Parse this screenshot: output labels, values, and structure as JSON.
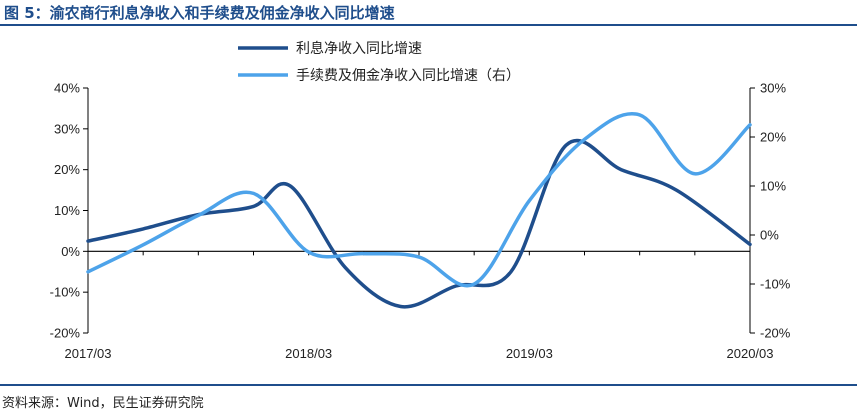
{
  "figure": {
    "title": "图 5：渝农商行利息净收入和手续费及佣金净收入同比增速",
    "source": "资料来源：Wind，民生证券研究院"
  },
  "colors": {
    "series1": "#1f4e8c",
    "series2": "#4da3ea",
    "rule": "#1f4e8c",
    "axis": "#000000"
  },
  "chart_data": {
    "type": "line",
    "x_ticks": [
      "2017/03",
      "2018/03",
      "2019/03",
      "2020/03"
    ],
    "x_range": [
      "2017/03",
      "2020/03"
    ],
    "y_left": {
      "ticks": [
        "-20%",
        "-10%",
        "0%",
        "10%",
        "20%",
        "30%",
        "40%"
      ],
      "range": [
        -20,
        40
      ]
    },
    "y_right": {
      "ticks": [
        "-20%",
        "-10%",
        "0%",
        "10%",
        "20%",
        "30%"
      ],
      "range": [
        -20,
        30
      ]
    },
    "legend_position": "top",
    "grid": false,
    "series": [
      {
        "name": "利息净收入同比增速",
        "axis": "left",
        "x": [
          "2017/03",
          "2017/06",
          "2017/09",
          "2017/12",
          "2018/02",
          "2018/05",
          "2018/08",
          "2018/11",
          "2019/02",
          "2019/05",
          "2019/08",
          "2019/11",
          "2020/03"
        ],
        "values": [
          2.5,
          5.5,
          9,
          11,
          16,
          -4,
          -13.5,
          -8.5,
          -5,
          26,
          20,
          15,
          1.7
        ]
      },
      {
        "name": "手续费及佣金净收入同比增速（右）",
        "axis": "right",
        "x": [
          "2017/03",
          "2017/06",
          "2017/09",
          "2017/12",
          "2018/03",
          "2018/06",
          "2018/09",
          "2018/12",
          "2019/03",
          "2019/06",
          "2019/09",
          "2019/12",
          "2020/03"
        ],
        "values": [
          -7.5,
          -2,
          4,
          8.5,
          -3.5,
          -3.8,
          -4.5,
          -10,
          7,
          19.5,
          24.5,
          12.5,
          22.5
        ]
      }
    ]
  }
}
